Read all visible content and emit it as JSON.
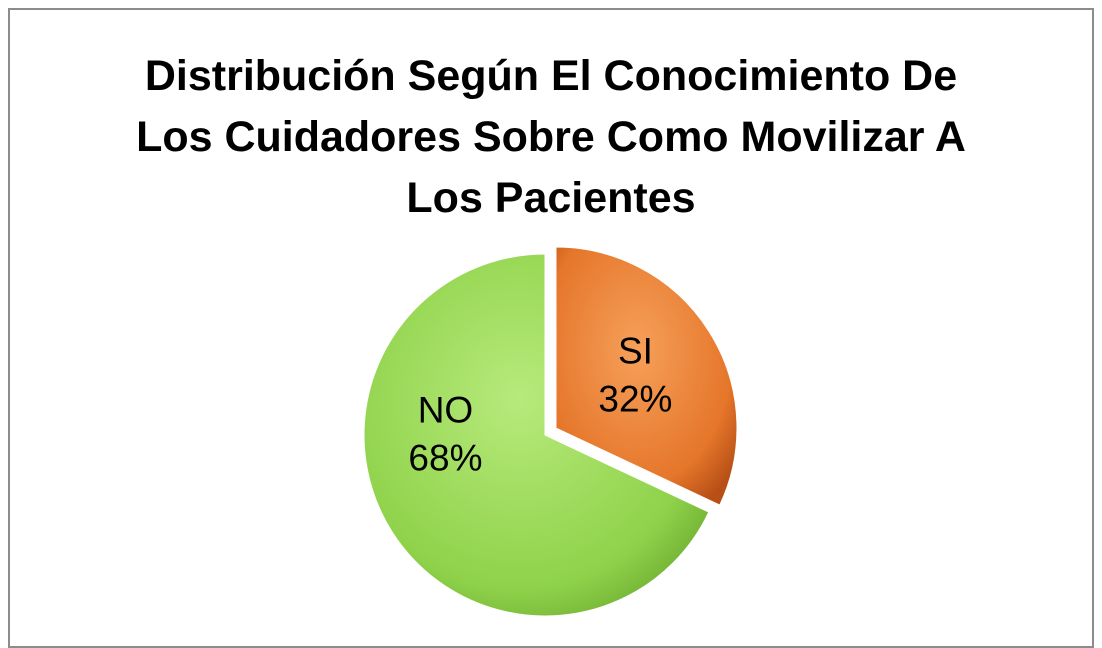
{
  "chart_data": {
    "type": "pie",
    "title": "Distribución Según El Conocimiento De Los Cuidadores Sobre Como Movilizar A Los Pacientes",
    "categories": [
      "SI",
      "NO"
    ],
    "values": [
      32,
      68
    ],
    "value_labels": [
      "32%",
      "68%"
    ],
    "colors": [
      "#e8762c",
      "#8fd24a"
    ]
  }
}
